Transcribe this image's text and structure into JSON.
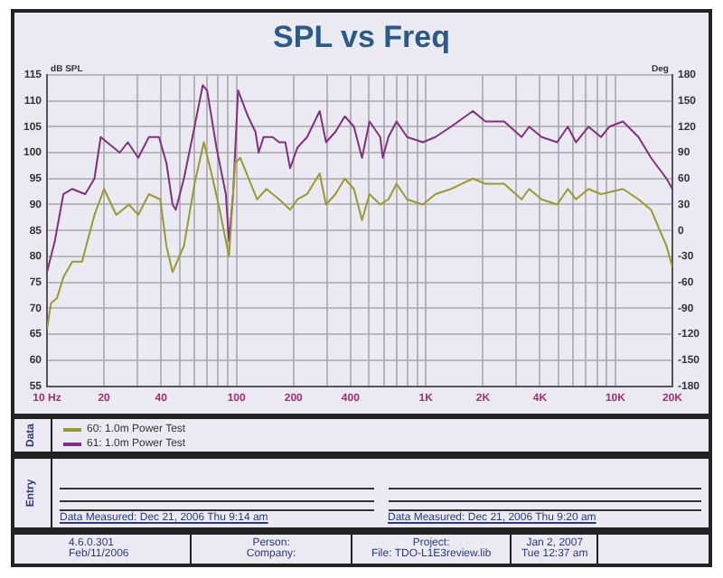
{
  "chart_data": {
    "type": "line",
    "title": "SPL vs Freq",
    "ylabel": "dB SPL",
    "y2label": "Deg",
    "log": "x",
    "xlim": [
      10,
      20000
    ],
    "ylim": [
      55,
      115
    ],
    "y2lim": [
      -180,
      180
    ],
    "xticks": [
      {
        "value": 10,
        "label": "10 Hz"
      },
      20,
      {
        "value": 30,
        "label": null
      },
      40,
      {
        "value": 50,
        "label": null
      },
      {
        "value": 60,
        "label": null
      },
      {
        "value": 70,
        "label": null
      },
      {
        "value": 80,
        "label": null
      },
      {
        "value": 90,
        "label": null
      },
      100,
      200,
      {
        "value": 300,
        "label": null
      },
      400,
      {
        "value": 500,
        "label": null
      },
      {
        "value": 600,
        "label": null
      },
      {
        "value": 700,
        "label": null
      },
      {
        "value": 800,
        "label": null
      },
      {
        "value": 900,
        "label": null
      },
      {
        "value": 1000,
        "label": "1K"
      },
      {
        "value": 2000,
        "label": "2K"
      },
      {
        "value": 3000,
        "label": null
      },
      {
        "value": 4000,
        "label": "4K"
      },
      {
        "value": 5000,
        "label": null
      },
      {
        "value": 6000,
        "label": null
      },
      {
        "value": 7000,
        "label": null
      },
      {
        "value": 8000,
        "label": null
      },
      {
        "value": 9000,
        "label": null
      },
      {
        "value": 10000,
        "label": "10K"
      },
      {
        "value": 20000,
        "label": "20K"
      }
    ],
    "yticks": [
      55,
      60,
      65,
      70,
      75,
      80,
      85,
      90,
      95,
      100,
      105,
      110,
      115
    ],
    "y2ticks": [
      -180,
      -150,
      -120,
      -90,
      -60,
      -30,
      0,
      30,
      60,
      90,
      120,
      150,
      180
    ],
    "grid": true,
    "legend": "bottom",
    "marker": "none",
    "line_style": "solid",
    "series": [
      {
        "name": "60: 1.0m Power Test",
        "color": "#9a9a30",
        "x": [
          10,
          10.5,
          11.3,
          12.2,
          13.6,
          15.3,
          17.8,
          20,
          23.2,
          27.1,
          30.3,
          34.5,
          39.6,
          42.7,
          46,
          52.8,
          60.1,
          67.3,
          73.8,
          81.5,
          91.3,
          98.4,
          104.7,
          119,
          128.5,
          144,
          168,
          192,
          210,
          236,
          275,
          297,
          333,
          373,
          417,
          460,
          504,
          574,
          634,
          700,
          796,
          964,
          1122,
          1356,
          1770,
          2061,
          2588,
          3200,
          3505,
          4083,
          4932,
          5611,
          6195,
          7211,
          8398,
          10970,
          13250,
          15430,
          18630,
          20000
        ],
        "values": [
          66,
          71,
          72,
          76,
          79,
          79,
          88,
          93,
          88,
          90,
          88,
          92,
          91,
          82,
          77,
          82,
          94,
          102,
          96,
          89,
          80,
          98,
          99,
          94,
          91,
          93,
          91,
          89,
          91,
          92,
          96,
          90,
          92,
          95,
          93,
          87,
          92,
          90,
          91,
          94,
          91,
          90,
          92,
          93,
          95,
          94,
          94,
          91,
          93,
          91,
          90,
          93,
          91,
          93,
          92,
          93,
          91,
          89,
          82,
          78
        ]
      },
      {
        "name": "61: 1.0m Power Test",
        "color": "#803080",
        "x": [
          10,
          11,
          12.2,
          13.6,
          15.9,
          17.8,
          19.2,
          24.2,
          26.7,
          30.3,
          34.5,
          39,
          42.7,
          46,
          47.8,
          52.8,
          60.1,
          66.4,
          70,
          78.4,
          87.9,
          91.3,
          96,
          102,
          115,
          126,
          131,
          139,
          155,
          168,
          181,
          192,
          210,
          236,
          275,
          297,
          333,
          373,
          417,
          460,
          504,
          574,
          592,
          634,
          700,
          796,
          964,
          1122,
          1356,
          1770,
          2061,
          2588,
          3200,
          3505,
          4083,
          4932,
          5611,
          6195,
          7211,
          8398,
          9290,
          10970,
          13250,
          15430,
          18630,
          20000
        ],
        "values": [
          77,
          83,
          92,
          93,
          92,
          95,
          103,
          100,
          102,
          99,
          103,
          103,
          98,
          90,
          89,
          95,
          105,
          113,
          112,
          101,
          92,
          83,
          92,
          112,
          107,
          104,
          100,
          103,
          103,
          102,
          102,
          97,
          101,
          103,
          108,
          102,
          104,
          107,
          105,
          99,
          106,
          103,
          99,
          103,
          106,
          103,
          102,
          103,
          105,
          108,
          106,
          106,
          103,
          105,
          103,
          102,
          105,
          102,
          105,
          103,
          105,
          106,
          103,
          99,
          95,
          93
        ]
      }
    ],
    "annotations": [
      "Data",
      "Entry",
      "Data Measured: Dec 21, 2006 Thu 9:14 am",
      "Data Measured: Dec 21, 2006 Thu 9:20 am",
      "4.6.0.301",
      "Feb/11/2006",
      "Person:",
      "Company:",
      "Project:",
      "File: TDO-L1E3review.lib",
      "Jan 2, 2007",
      "Tue 12:37 am"
    ]
  }
}
